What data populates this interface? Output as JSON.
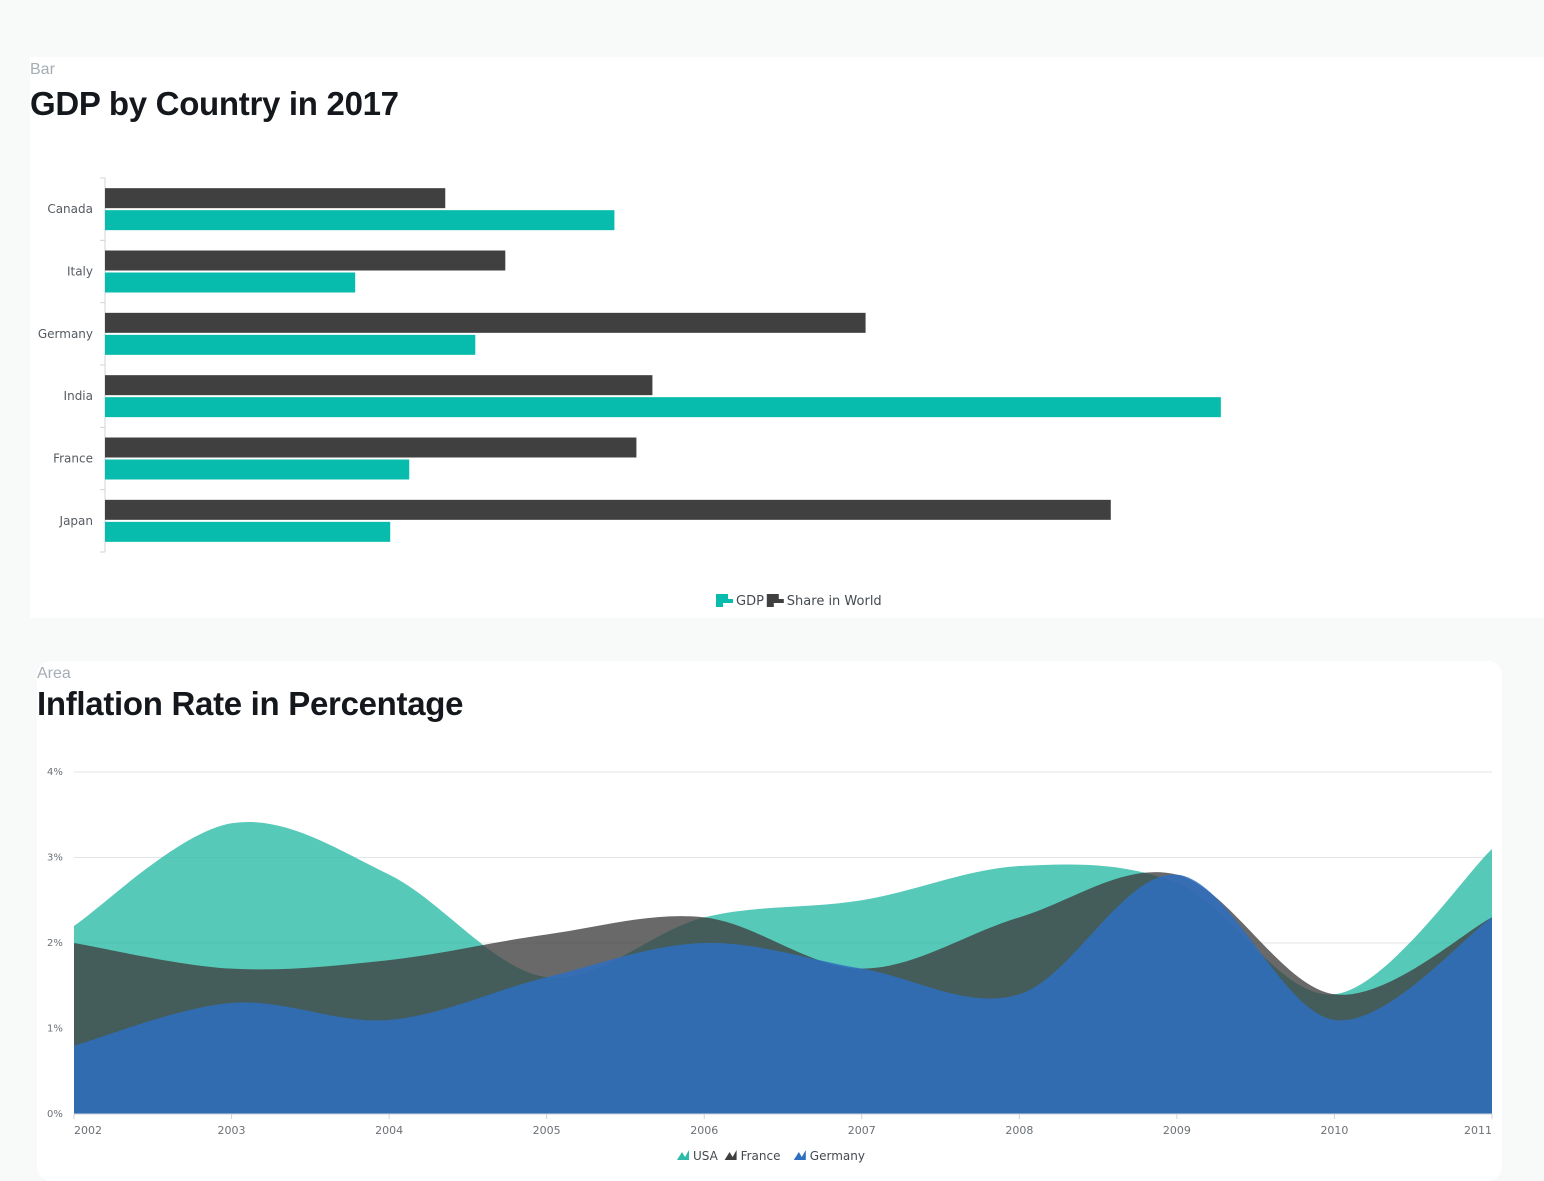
{
  "bar_panel": {
    "kind_label": "Bar",
    "chart_data": {
      "type": "bar",
      "orientation": "horizontal",
      "title": "GDP by Country in 2017",
      "categories": [
        "Canada",
        "Italy",
        "Germany",
        "India",
        "France",
        "Japan"
      ],
      "series": [
        {
          "name": "Share in World",
          "color": "#404040",
          "values": [
            34,
            40,
            76,
            54.7,
            53.1,
            100.5
          ]
        },
        {
          "name": "GDP",
          "color": "#07bcac",
          "values": [
            50.9,
            25,
            37,
            111.5,
            30.4,
            28.5
          ]
        }
      ],
      "xlim": [
        0,
        130
      ],
      "grid": false,
      "legend_position": "bottom-center"
    }
  },
  "area_panel": {
    "kind_label": "Area",
    "chart_data": {
      "type": "area",
      "title": "Inflation Rate in Percentage",
      "x": [
        "2002",
        "2003",
        "2004",
        "2005",
        "2006",
        "2007",
        "2008",
        "2009",
        "2010",
        "2011"
      ],
      "series": [
        {
          "name": "USA",
          "color": "#2cbba8",
          "values": [
            2.2,
            3.4,
            2.8,
            1.6,
            2.3,
            2.5,
            2.9,
            2.7,
            1.4,
            3.1
          ]
        },
        {
          "name": "France",
          "color": "#3f3f3f",
          "values": [
            2.0,
            1.7,
            1.8,
            2.1,
            2.3,
            1.7,
            2.3,
            2.8,
            1.4,
            2.3
          ]
        },
        {
          "name": "Germany",
          "color": "#2f6fbf",
          "values": [
            0.8,
            1.3,
            1.1,
            1.6,
            2.0,
            1.7,
            1.4,
            2.8,
            1.1,
            2.3
          ]
        }
      ],
      "y_ticks": [
        "0%",
        "1%",
        "2%",
        "3%",
        "4%"
      ],
      "ylim": [
        0,
        4
      ],
      "grid": true,
      "legend_position": "bottom-center"
    }
  }
}
